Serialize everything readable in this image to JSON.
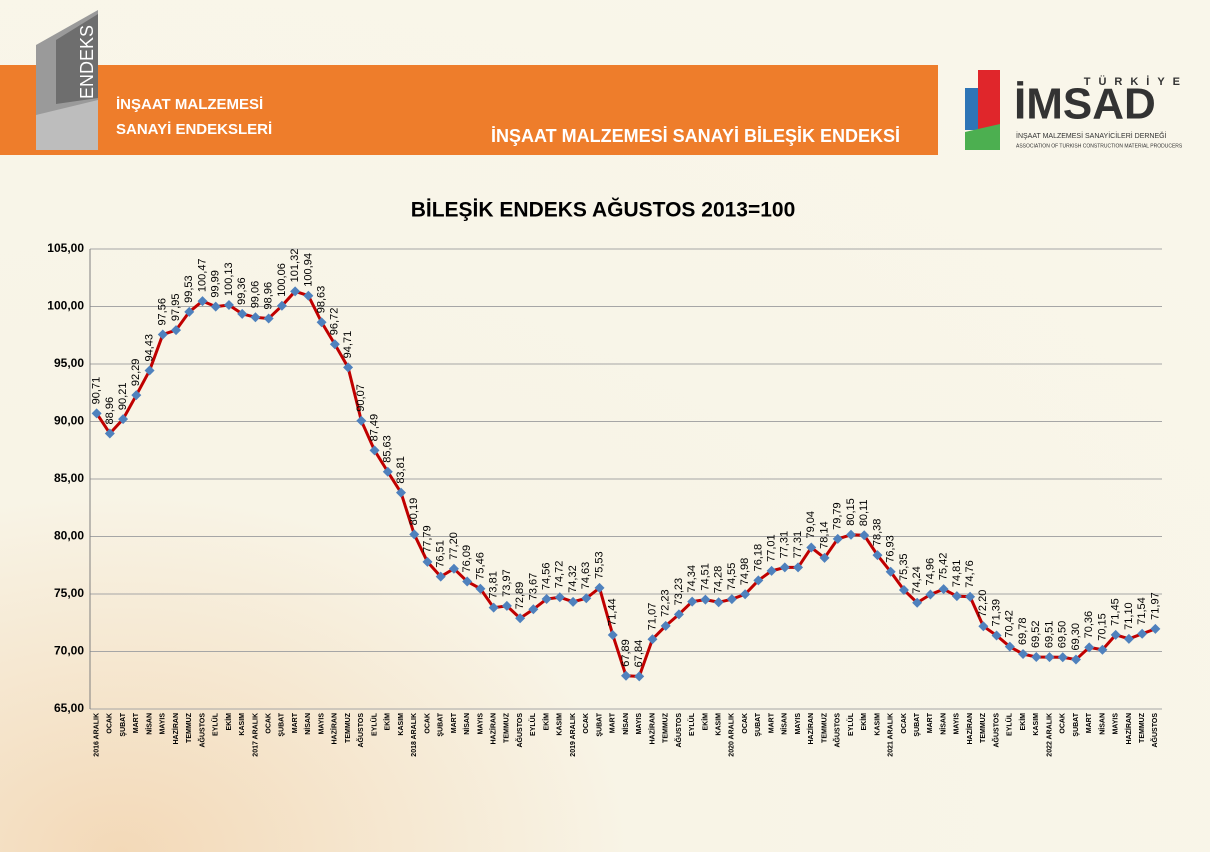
{
  "header": {
    "brand": "ENDEKS",
    "brand_lines": [
      "İNŞAAT MALZEMESİ",
      "SANAYİ ENDEKSLERİ"
    ],
    "section_title": "İNŞAAT MALZEMESİ SANAYİ BİLEŞİK ENDEKSİ",
    "logo": {
      "country": "TÜRKİYE",
      "name": "İMSAD",
      "line1": "İNŞAAT MALZEMESİ SANAYİCİLERİ DERNEĞİ",
      "line2": "ASSOCIATION OF TURKISH CONSTRUCTION MATERIAL PRODUCERS"
    }
  },
  "chart_data": {
    "type": "line",
    "title": "BİLEŞİK ENDEKS AĞUSTOS 2013=100",
    "categories": [
      "2016 ARALIK",
      "OCAK",
      "ŞUBAT",
      "MART",
      "NİSAN",
      "MAYIS",
      "HAZİRAN",
      "TEMMUZ",
      "AĞUSTOS",
      "EYLÜL",
      "EKİM",
      "KASIM",
      "2017 ARALIK",
      "OCAK",
      "ŞUBAT",
      "MART",
      "NİSAN",
      "MAYIS",
      "HAZİRAN",
      "TEMMUZ",
      "AĞUSTOS",
      "EYLÜL",
      "EKİM",
      "KASIM",
      "2018 ARALIK",
      "OCAK",
      "ŞUBAT",
      "MART",
      "NİSAN",
      "MAYIS",
      "HAZİRAN",
      "TEMMUZ",
      "AĞUSTOS",
      "EYLÜL",
      "EKİM",
      "KASIM",
      "2019 ARALIK",
      "OCAK",
      "ŞUBAT",
      "MART",
      "NİSAN",
      "MAYIS",
      "HAZİRAN",
      "TEMMUZ",
      "AĞUSTOS",
      "EYLÜL",
      "EKİM",
      "KASIM",
      "2020 ARALIK",
      "OCAK",
      "ŞUBAT",
      "MART",
      "NİSAN",
      "MAYIS",
      "HAZİRAN",
      "TEMMUZ",
      "AĞUSTOS",
      "EYLÜL",
      "EKİM",
      "KASIM",
      "2021 ARALIK",
      "OCAK",
      "ŞUBAT",
      "MART",
      "NİSAN",
      "MAYIS",
      "HAZİRAN",
      "TEMMUZ",
      "AĞUSTOS",
      "EYLÜL",
      "EKİM",
      "KASIM",
      "2022 ARALIK",
      "OCAK",
      "ŞUBAT",
      "MART",
      "NİSAN",
      "MAYIS",
      "HAZİRAN",
      "TEMMUZ",
      "AĞUSTOS"
    ],
    "values": [
      90.71,
      88.96,
      90.21,
      92.29,
      94.43,
      97.56,
      97.95,
      99.53,
      100.47,
      99.99,
      100.13,
      99.36,
      99.06,
      98.96,
      100.06,
      101.32,
      100.94,
      98.63,
      96.72,
      94.71,
      90.07,
      87.49,
      85.63,
      83.81,
      80.19,
      77.79,
      76.51,
      77.2,
      76.09,
      75.46,
      73.81,
      73.97,
      72.89,
      73.67,
      74.56,
      74.72,
      74.32,
      74.63,
      75.53,
      71.44,
      67.89,
      67.84,
      71.07,
      72.23,
      73.23,
      74.34,
      74.51,
      74.28,
      74.55,
      74.98,
      76.18,
      77.01,
      77.31,
      77.31,
      79.04,
      78.14,
      79.79,
      80.15,
      80.11,
      78.38,
      76.93,
      75.35,
      74.24,
      74.96,
      75.42,
      74.81,
      74.76,
      72.2,
      71.39,
      70.42,
      69.78,
      69.52,
      69.51,
      69.5,
      69.3,
      70.36,
      70.15,
      71.45,
      71.1,
      71.54,
      71.97
    ],
    "value_labels": [
      "90,71",
      "88,96",
      "90,21",
      "92,29",
      "94,43",
      "97,56",
      "97,95",
      "99,53",
      "100,47",
      "99,99",
      "100,13",
      "99,36",
      "99,06",
      "98,96",
      "100,06",
      "101,32",
      "100,94",
      "98,63",
      "96,72",
      "94,71",
      "90,07",
      "87,49",
      "85,63",
      "83,81",
      "80,19",
      "77,79",
      "76,51",
      "77,20",
      "76,09",
      "75,46",
      "73,81",
      "73,97",
      "72,89",
      "73,67",
      "74,56",
      "74,72",
      "74,32",
      "74,63",
      "75,53",
      "71,44",
      "67,89",
      "67,84",
      "71,07",
      "72,23",
      "73,23",
      "74,34",
      "74,51",
      "74,28",
      "74,55",
      "74,98",
      "76,18",
      "77,01",
      "77,31",
      "77,31",
      "79,04",
      "78,14",
      "79,79",
      "80,15",
      "80,11",
      "78,38",
      "76,93",
      "75,35",
      "74,24",
      "74,96",
      "75,42",
      "74,81",
      "74,76",
      "72,20",
      "71,39",
      "70,42",
      "69,78",
      "69,52",
      "69,51",
      "69,50",
      "69,30",
      "70,36",
      "70,15",
      "71,45",
      "71,10",
      "71,54",
      "71,97"
    ],
    "color": "#c00000",
    "marker_color": "#4f81bd",
    "ylim": [
      65,
      105
    ],
    "yticks": [
      {
        "value": 65,
        "label": "65,00"
      },
      {
        "value": 70,
        "label": "70,00"
      },
      {
        "value": 75,
        "label": "75,00"
      },
      {
        "value": 80,
        "label": "80,00"
      },
      {
        "value": 85,
        "label": "85,00"
      },
      {
        "value": 90,
        "label": "90,00"
      },
      {
        "value": 95,
        "label": "95,00"
      },
      {
        "value": 100,
        "label": "100,00"
      },
      {
        "value": 105,
        "label": "105,00"
      }
    ],
    "grid": true
  }
}
